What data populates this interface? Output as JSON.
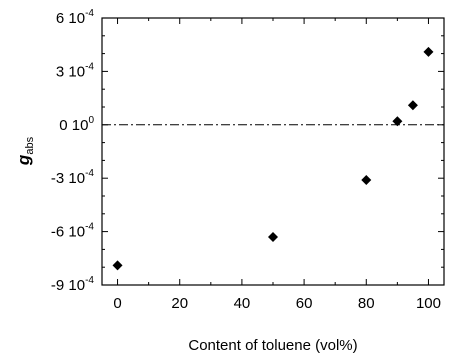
{
  "chart_data": {
    "type": "scatter",
    "title": "",
    "xlabel": "Content of toluene (vol%)",
    "ylabel": {
      "main": "g",
      "sub": "abs"
    },
    "xlim": [
      -5,
      105
    ],
    "ylim": [
      -0.0009,
      0.0006
    ],
    "x_ticks": [
      {
        "value": 0,
        "label": "0"
      },
      {
        "value": 20,
        "label": "20"
      },
      {
        "value": 40,
        "label": "40"
      },
      {
        "value": 60,
        "label": "60"
      },
      {
        "value": 80,
        "label": "80"
      },
      {
        "value": 100,
        "label": "100"
      }
    ],
    "y_ticks": [
      {
        "value": 0.0006,
        "base": "6 10",
        "exp": "-4"
      },
      {
        "value": 0.0003,
        "base": "3 10",
        "exp": "-4"
      },
      {
        "value": 0,
        "base": "0 10",
        "exp": "0"
      },
      {
        "value": -0.0003,
        "base": "-3 10",
        "exp": "-4"
      },
      {
        "value": -0.0006,
        "base": "-6 10",
        "exp": "-4"
      },
      {
        "value": -0.0009,
        "base": "-9 10",
        "exp": "-4"
      }
    ],
    "x_minor_step": 10,
    "y_minor_step": 0.0001,
    "reference_line": {
      "y": 0,
      "style": "dash-dot"
    },
    "series": [
      {
        "marker": "diamond",
        "color": "#000000",
        "points": [
          {
            "x": 0,
            "y": -0.00079
          },
          {
            "x": 50,
            "y": -0.00063
          },
          {
            "x": 80,
            "y": -0.00031
          },
          {
            "x": 90,
            "y": 2e-05
          },
          {
            "x": 95,
            "y": 0.00011
          },
          {
            "x": 100,
            "y": 0.00041
          }
        ]
      }
    ]
  }
}
